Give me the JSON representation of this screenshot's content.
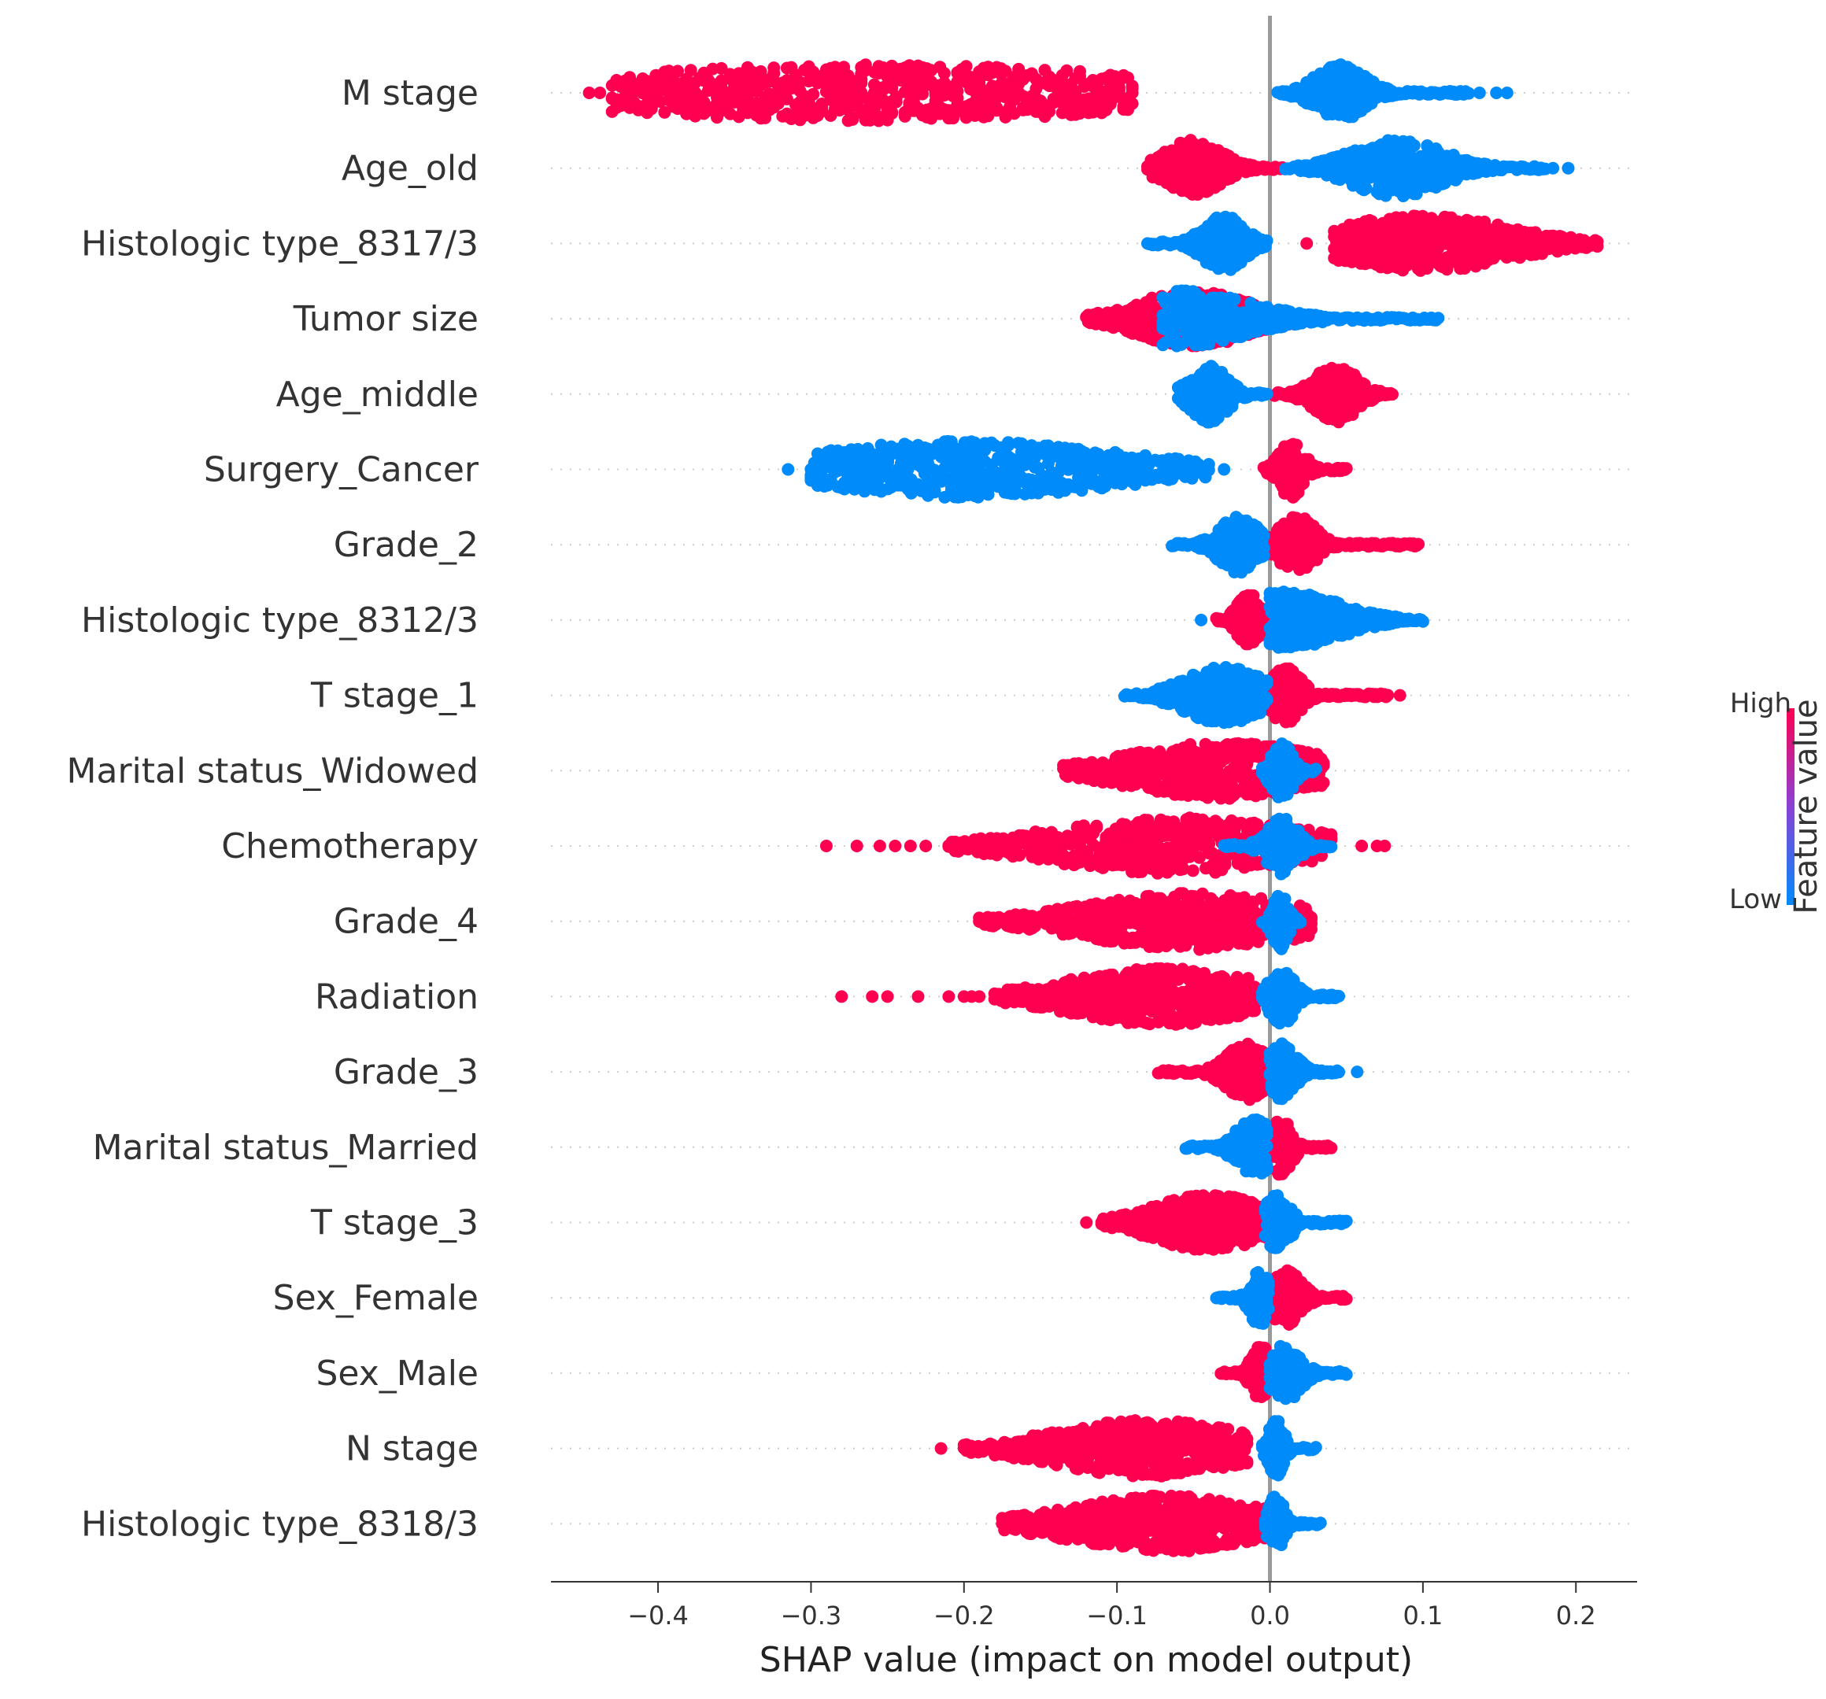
{
  "chart_data": {
    "type": "scatter",
    "subtype": "shap-beeswarm",
    "title": "",
    "xlabel": "SHAP value (impact on model output)",
    "xlim": [
      -0.47,
      0.24
    ],
    "xticks": [
      -0.4,
      -0.3,
      -0.2,
      -0.1,
      0.0,
      0.1,
      0.2
    ],
    "xtick_labels": [
      "−0.4",
      "−0.3",
      "−0.2",
      "−0.1",
      "0.0",
      "0.1",
      "0.2"
    ],
    "zero_line": 0.0,
    "colorbar": {
      "title": "Feature value",
      "high_label": "High",
      "low_label": "Low",
      "high_color": "#ff0051",
      "low_color": "#008bfb"
    },
    "colors": {
      "high": "#ff0051",
      "low": "#008bfb",
      "zero_line": "#999999",
      "axis": "#333333"
    },
    "features": [
      {
        "name": "M stage",
        "high": {
          "min": -0.43,
          "max": -0.09,
          "peak": -0.26,
          "width": 0.19,
          "outliers": [
            -0.445,
            -0.438,
            -0.42,
            -0.113,
            -0.1,
            -0.09
          ]
        },
        "low": {
          "min": 0.005,
          "max": 0.13,
          "peak": 0.046,
          "width": 0.016,
          "outliers": [
            0.137,
            0.148,
            0.155
          ]
        }
      },
      {
        "name": "Age_old",
        "high": {
          "min": -0.08,
          "max": 0.008,
          "peak": -0.05,
          "width": 0.018,
          "outliers": []
        },
        "low": {
          "min": 0.01,
          "max": 0.18,
          "peak": 0.083,
          "width": 0.03,
          "outliers": [
            0.185,
            0.195
          ]
        }
      },
      {
        "name": "Histologic type_8317/3",
        "high": {
          "min": 0.042,
          "max": 0.214,
          "peak": 0.1,
          "width": 0.055,
          "outliers": [
            0.024
          ]
        },
        "low": {
          "min": -0.08,
          "max": -0.002,
          "peak": -0.03,
          "width": 0.013,
          "outliers": []
        }
      },
      {
        "name": "Tumor size",
        "high": {
          "min": -0.12,
          "max": 0.03,
          "peak": -0.05,
          "width": 0.035,
          "outliers": [
            -0.042,
            -0.03,
            0.02
          ]
        },
        "low": {
          "min": -0.07,
          "max": 0.11,
          "peak": -0.06,
          "width": 0.045,
          "outliers": []
        }
      },
      {
        "name": "Age_middle",
        "high": {
          "min": 0.003,
          "max": 0.08,
          "peak": 0.043,
          "width": 0.014,
          "outliers": []
        },
        "low": {
          "min": -0.06,
          "max": -0.002,
          "peak": -0.04,
          "width": 0.012,
          "outliers": []
        }
      },
      {
        "name": "Surgery_Cancer",
        "high": {
          "min": -0.004,
          "max": 0.05,
          "peak": 0.014,
          "width": 0.008,
          "outliers": []
        },
        "low": {
          "min": -0.3,
          "max": -0.04,
          "peak": -0.2,
          "width": 0.1,
          "outliers": [
            -0.315,
            -0.03
          ]
        }
      },
      {
        "name": "Grade_2",
        "high": {
          "min": -0.002,
          "max": 0.097,
          "peak": 0.018,
          "width": 0.012,
          "outliers": []
        },
        "low": {
          "min": -0.064,
          "max": -0.004,
          "peak": -0.02,
          "width": 0.013,
          "outliers": []
        }
      },
      {
        "name": "Histologic type_8312/3",
        "high": {
          "min": -0.035,
          "max": -0.004,
          "peak": -0.014,
          "width": 0.007,
          "outliers": []
        },
        "low": {
          "min": 0.0,
          "max": 0.1,
          "peak": 0.01,
          "width": 0.035,
          "outliers": [
            -0.045
          ]
        }
      },
      {
        "name": "T stage_1",
        "high": {
          "min": -0.002,
          "max": 0.077,
          "peak": 0.01,
          "width": 0.01,
          "outliers": [
            0.085
          ]
        },
        "low": {
          "min": -0.095,
          "max": -0.002,
          "peak": -0.03,
          "width": 0.025,
          "outliers": []
        }
      },
      {
        "name": "Marital status_Widowed",
        "high": {
          "min": -0.135,
          "max": 0.035,
          "peak": -0.03,
          "width": 0.06,
          "outliers": []
        },
        "low": {
          "min": -0.005,
          "max": 0.03,
          "peak": 0.008,
          "width": 0.007,
          "outliers": []
        }
      },
      {
        "name": "Chemotherapy",
        "high": {
          "min": -0.21,
          "max": 0.04,
          "peak": -0.06,
          "width": 0.08,
          "outliers": [
            -0.29,
            -0.27,
            -0.255,
            -0.245,
            -0.235,
            -0.225,
            0.06,
            0.07,
            0.075
          ]
        },
        "low": {
          "min": -0.03,
          "max": 0.04,
          "peak": 0.008,
          "width": 0.01,
          "outliers": []
        }
      },
      {
        "name": "Grade_4",
        "high": {
          "min": -0.19,
          "max": 0.027,
          "peak": -0.05,
          "width": 0.07,
          "outliers": []
        },
        "low": {
          "min": -0.005,
          "max": 0.02,
          "peak": 0.007,
          "width": 0.005,
          "outliers": []
        }
      },
      {
        "name": "Radiation",
        "high": {
          "min": -0.18,
          "max": -0.01,
          "peak": -0.07,
          "width": 0.06,
          "outliers": [
            -0.28,
            -0.26,
            -0.25,
            -0.23,
            -0.21,
            -0.2,
            -0.195,
            -0.19
          ]
        },
        "low": {
          "min": -0.005,
          "max": 0.045,
          "peak": 0.008,
          "width": 0.008,
          "outliers": []
        }
      },
      {
        "name": "Grade_3",
        "high": {
          "min": -0.073,
          "max": -0.002,
          "peak": -0.015,
          "width": 0.013,
          "outliers": []
        },
        "low": {
          "min": 0.0,
          "max": 0.045,
          "peak": 0.008,
          "width": 0.009,
          "outliers": [
            0.057
          ]
        }
      },
      {
        "name": "Marital status_Married",
        "high": {
          "min": 0.0,
          "max": 0.04,
          "peak": 0.007,
          "width": 0.007,
          "outliers": []
        },
        "low": {
          "min": -0.055,
          "max": -0.002,
          "peak": -0.01,
          "width": 0.012,
          "outliers": []
        }
      },
      {
        "name": "T stage_3",
        "high": {
          "min": -0.11,
          "max": -0.002,
          "peak": -0.04,
          "width": 0.035,
          "outliers": [
            -0.12
          ]
        },
        "low": {
          "min": -0.003,
          "max": 0.05,
          "peak": 0.005,
          "width": 0.008,
          "outliers": []
        }
      },
      {
        "name": "Sex_Female",
        "high": {
          "min": 0.0,
          "max": 0.05,
          "peak": 0.01,
          "width": 0.01,
          "outliers": []
        },
        "low": {
          "min": -0.035,
          "max": -0.001,
          "peak": -0.007,
          "width": 0.006,
          "outliers": []
        }
      },
      {
        "name": "Sex_Male",
        "high": {
          "min": -0.032,
          "max": -0.001,
          "peak": -0.006,
          "width": 0.006,
          "outliers": []
        },
        "low": {
          "min": 0.0,
          "max": 0.05,
          "peak": 0.01,
          "width": 0.01,
          "outliers": []
        }
      },
      {
        "name": "N stage",
        "high": {
          "min": -0.2,
          "max": -0.015,
          "peak": -0.08,
          "width": 0.06,
          "outliers": [
            -0.215
          ]
        },
        "low": {
          "min": -0.005,
          "max": 0.03,
          "peak": 0.004,
          "width": 0.005,
          "outliers": []
        }
      },
      {
        "name": "Histologic type_8318/3",
        "high": {
          "min": -0.175,
          "max": -0.002,
          "peak": -0.07,
          "width": 0.06,
          "outliers": []
        },
        "low": {
          "min": -0.003,
          "max": 0.033,
          "peak": 0.004,
          "width": 0.005,
          "outliers": []
        }
      }
    ]
  }
}
